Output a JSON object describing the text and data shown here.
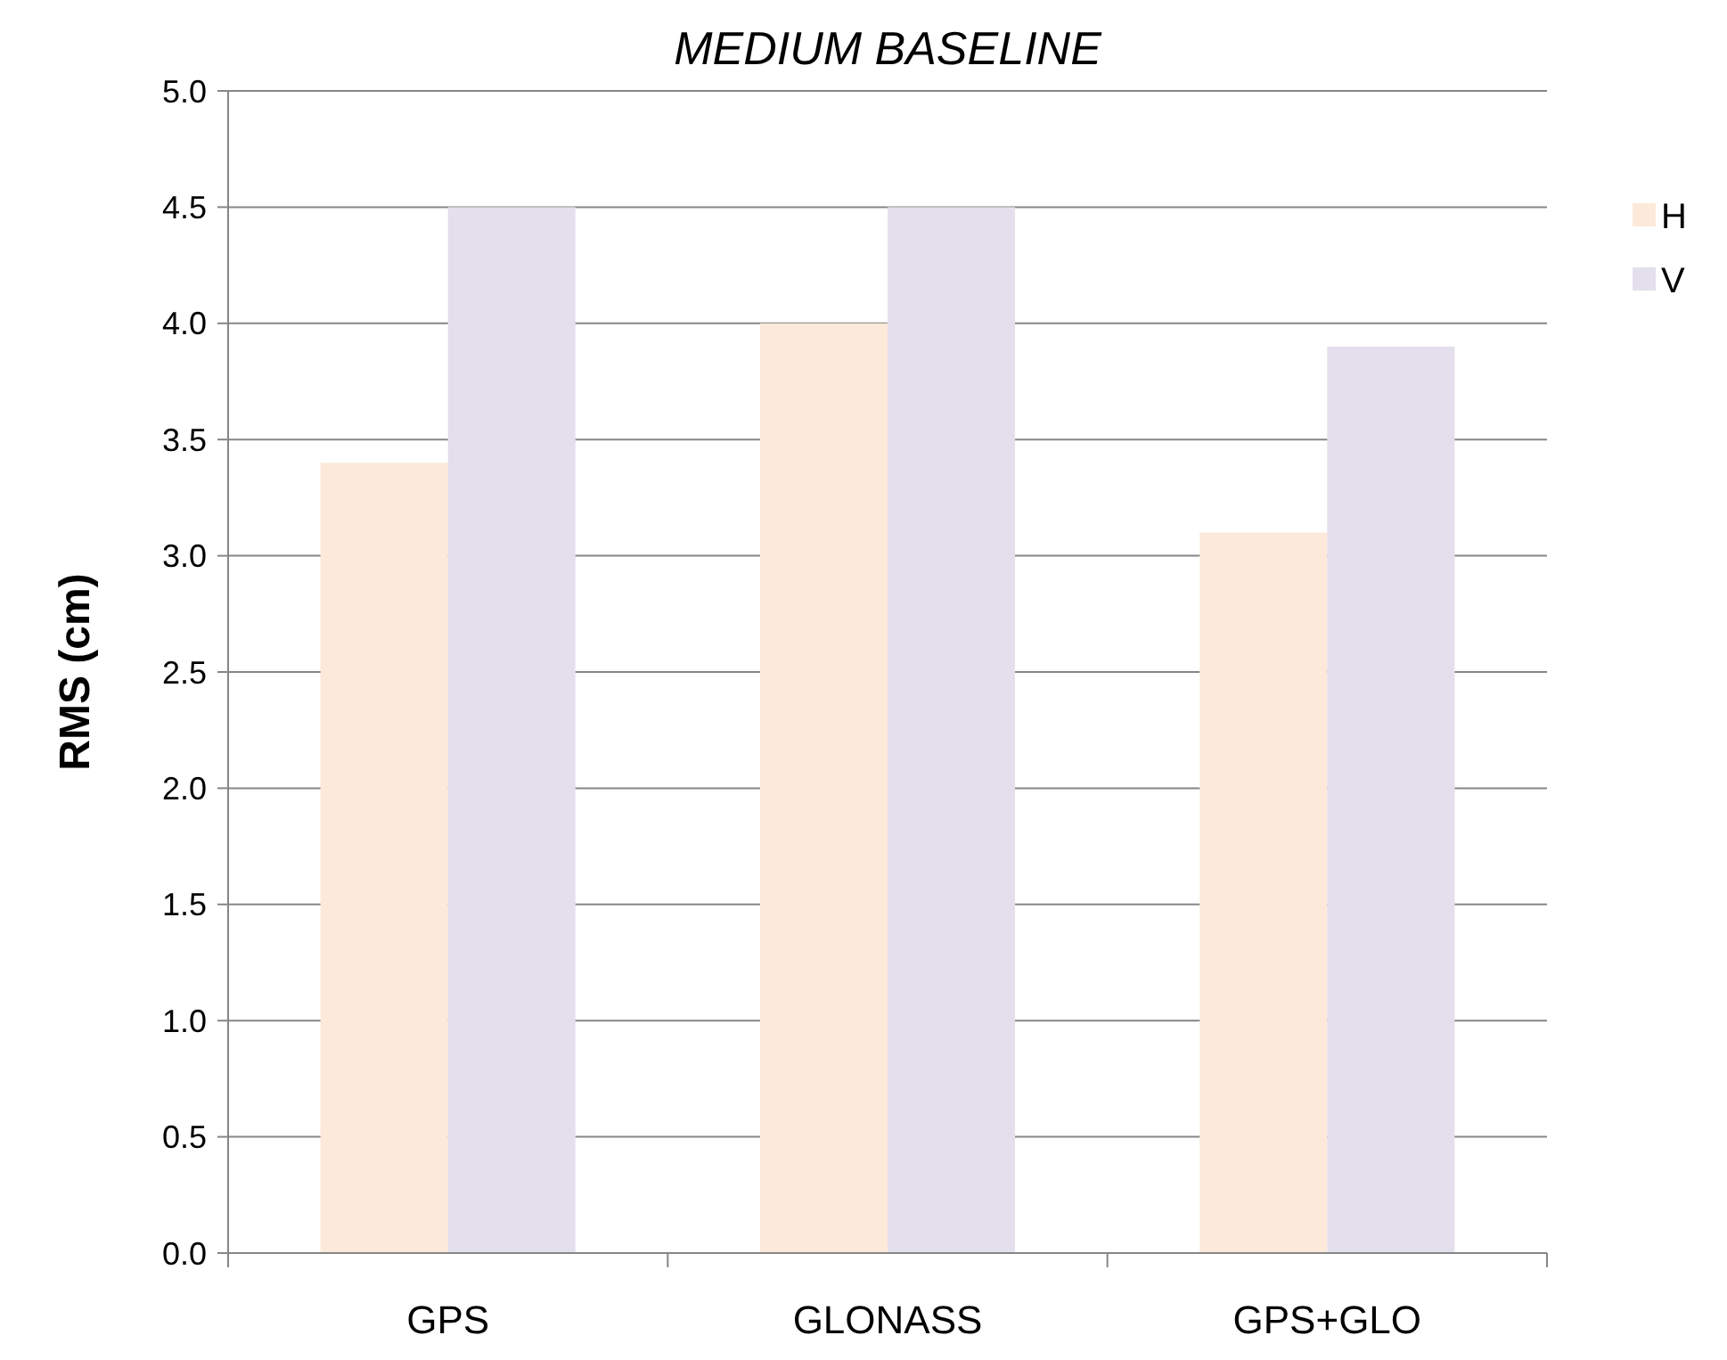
{
  "chart_data": {
    "type": "bar",
    "title": "MEDIUM BASELINE",
    "ylabel": "RMS  (cm)",
    "categories": [
      "GPS",
      "GLONASS",
      "GPS+GLO"
    ],
    "series": [
      {
        "name": "H",
        "color": "#fde9d9",
        "values": [
          3.4,
          4.0,
          3.1
        ]
      },
      {
        "name": "V",
        "color": "#e4dfec",
        "values": [
          4.5,
          4.5,
          3.9
        ]
      }
    ],
    "ylim": [
      0,
      5
    ],
    "yticks": [
      {
        "value": 0,
        "label": "0.0"
      },
      0.5,
      {
        "value": 1,
        "label": "1.0"
      },
      1.5,
      {
        "value": 2,
        "label": "2.0"
      },
      2.5,
      {
        "value": 3,
        "label": "3.0"
      },
      3.5,
      {
        "value": 4,
        "label": "4.0"
      },
      4.5,
      {
        "value": 5,
        "label": "5.0"
      }
    ],
    "grid": "y",
    "legend": "right"
  }
}
